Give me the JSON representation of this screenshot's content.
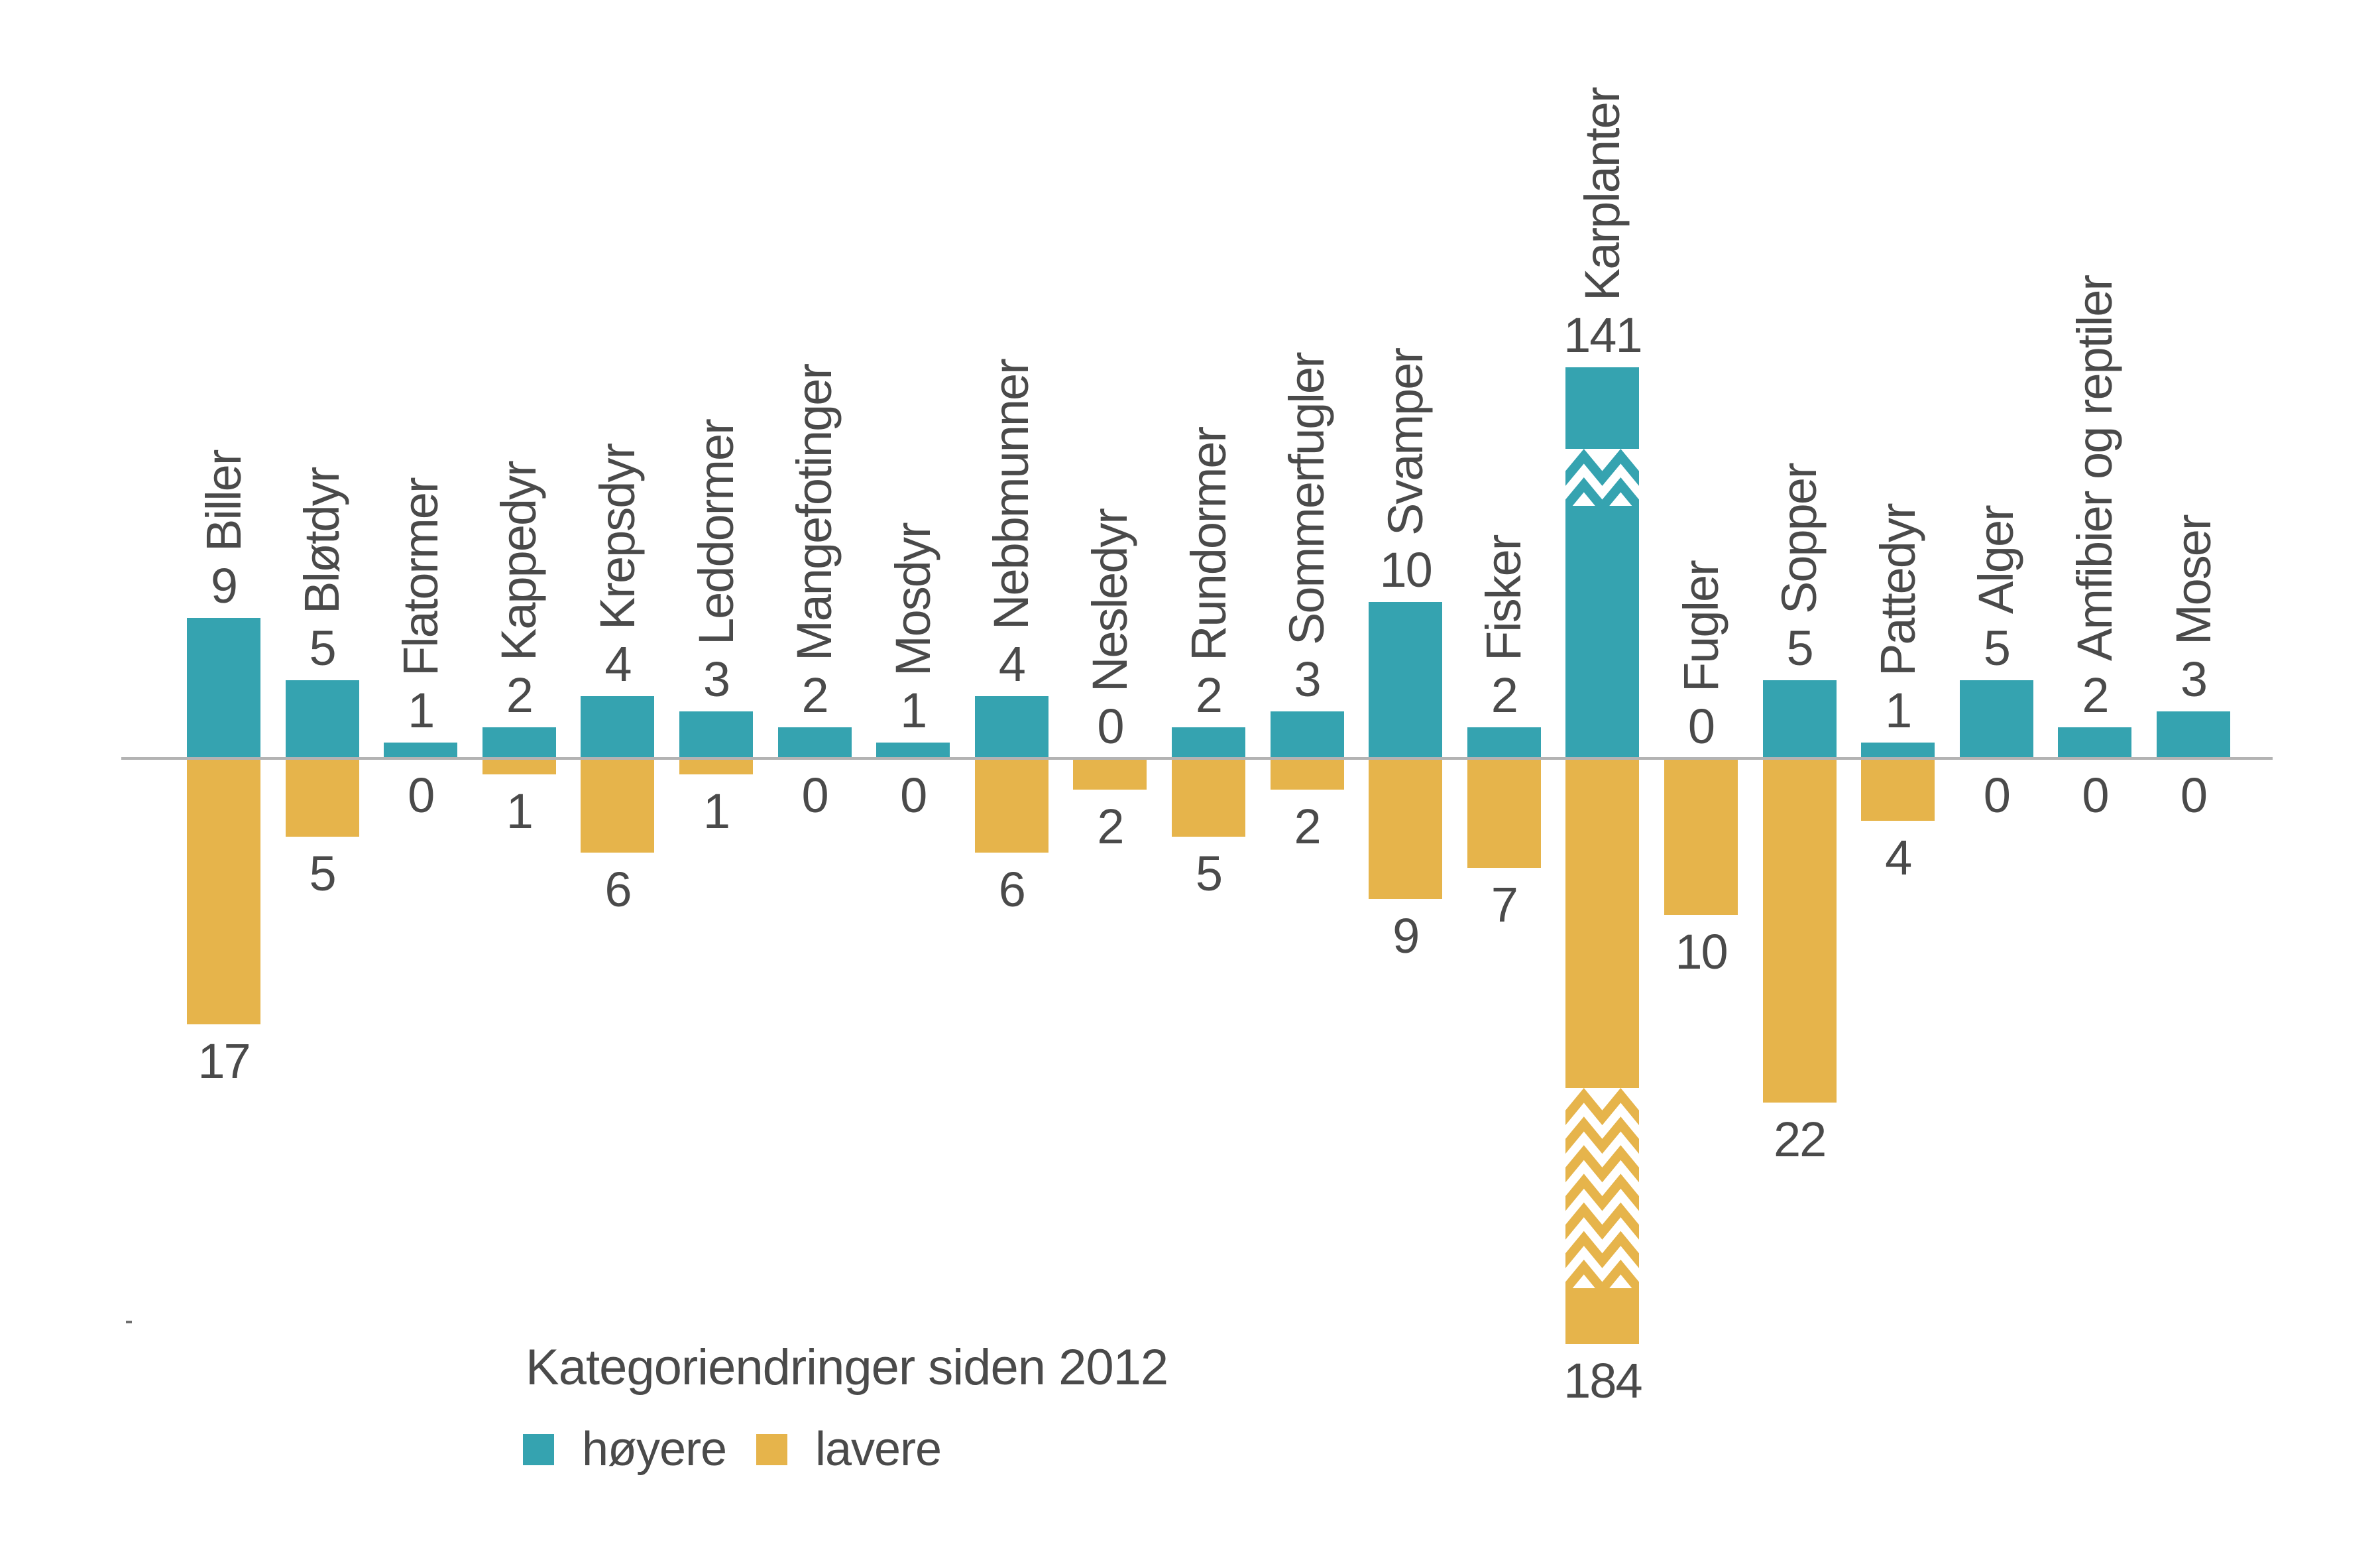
{
  "title": "Kategoriendringer siden 2012",
  "legend": {
    "items": [
      {
        "label": "høyere",
        "color": "#35A3B0"
      },
      {
        "label": "lavere",
        "color": "#E6B44B"
      }
    ]
  },
  "colors": {
    "hoyere": "#35A3B0",
    "lavere": "#E6B44B",
    "text": "#4A4A4A",
    "axis": "#B3B3B3"
  },
  "chart_data": {
    "type": "bar",
    "subtype": "diverging-vertical-bars",
    "title": "Kategoriendringer siden 2012",
    "categories": [
      "Biller",
      "Bløtdyr",
      "Flatormer",
      "Kappedyr",
      "Krepsdyr",
      "Leddormer",
      "Mangefotinger",
      "Mosdyr",
      "Nebbmunner",
      "Nesledyr",
      "Rundormer",
      "Sommerfugler",
      "Svamper",
      "Fisker",
      "Karplanter",
      "Fugler",
      "Sopper",
      "Pattedyr",
      "Alger",
      "Amfibier og reptiler",
      "Moser"
    ],
    "series": [
      {
        "name": "høyere",
        "direction": "up",
        "color": "#35A3B0",
        "values": [
          9,
          5,
          1,
          2,
          4,
          3,
          2,
          1,
          4,
          0,
          2,
          3,
          10,
          2,
          141,
          0,
          5,
          1,
          5,
          2,
          3
        ]
      },
      {
        "name": "lavere",
        "direction": "down",
        "color": "#E6B44B",
        "values": [
          17,
          5,
          0,
          1,
          6,
          1,
          0,
          0,
          6,
          2,
          5,
          2,
          9,
          7,
          184,
          10,
          22,
          4,
          0,
          0,
          0
        ]
      }
    ],
    "baseline": 0,
    "value_labels": true,
    "category_labels_rotated": true,
    "grid": false,
    "legend_position": "bottom-left",
    "axis_break": {
      "category": "Karplanter",
      "applies_to": [
        "høyere",
        "lavere"
      ]
    }
  }
}
